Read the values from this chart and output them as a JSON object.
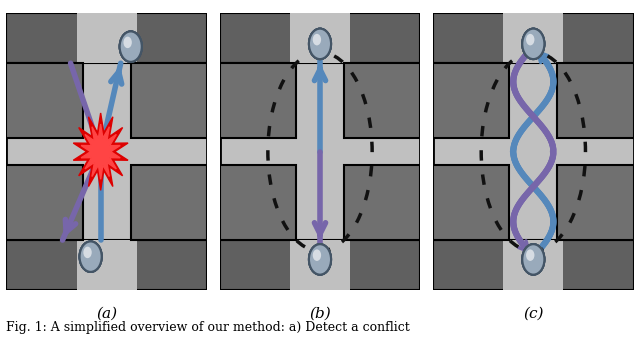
{
  "figure_width": 6.4,
  "figure_height": 3.37,
  "dpi": 100,
  "bg_color": "#ffffff",
  "panel_bg": "#c0c0c0",
  "wall_outer": "#404040",
  "obstacle_dark": "#808080",
  "obstacle_outline": "#202020",
  "caption_a": "(a)",
  "caption_b": "(b)",
  "caption_c": "(c)",
  "caption_fontsize": 11,
  "fig_caption": "Fig. 1: A simplified overview of our method: a) Detect a conflict",
  "fig_caption_fontsize": 9,
  "arrow_blue": "#5588bb",
  "arrow_purple": "#7766aa",
  "explosion_red": "#dd0000",
  "explosion_bright": "#ff4444",
  "dot_color": "#111111",
  "ball_main": "#99aabb",
  "ball_light": "#ccdde8",
  "ball_edge": "#445566"
}
